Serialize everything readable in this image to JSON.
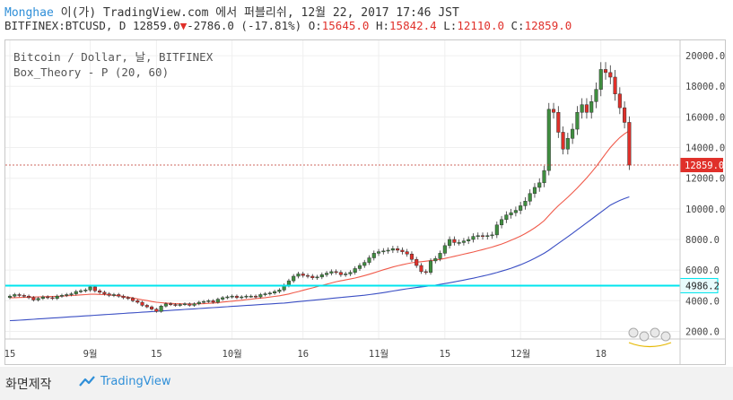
{
  "header": {
    "line1": {
      "brand": "Monghae",
      "text": " 이(가) TradingView.com 에서 퍼블리쉬, 12월 22, 2017 17:46 JST"
    },
    "line2": {
      "symbol": "BITFINEX:BTCUSD, D",
      "last": "12859.0",
      "arrow": "▼",
      "change": "-2786.0 (-17.81%)",
      "o_label": "O:",
      "o": "15645.0",
      "h_label": "H:",
      "h": "15842.4",
      "l_label": "L:",
      "l": "12110.0",
      "c_label": "C:",
      "c": "12859.0"
    }
  },
  "footer": {
    "left": "화면제작",
    "logo_text": "TradingView"
  },
  "colors": {
    "up": "#3f8e3f",
    "down": "#e0302a",
    "ma20": "#f05a4a",
    "ma60": "#3b4fc4",
    "hline": "#00e5ee",
    "price_line": "#c0392b"
  },
  "chart_data": {
    "type": "candlestick",
    "title": "Bitcoin / Dollar, 날, BITFINEX",
    "indicator": "Box_Theory - P (20, 60)",
    "ylim": [
      1500,
      21000
    ],
    "yticks": [
      2000,
      4000,
      6000,
      8000,
      10000,
      12000,
      14000,
      16000,
      18000,
      20000
    ],
    "ytick_labels": [
      "2000.0",
      "4000.0",
      "6000.0",
      "8000.0",
      "10000.0",
      "12000.0",
      "14000.0",
      "16000.0",
      "18000.0",
      "20000.0"
    ],
    "xticks": [
      {
        "label": "15",
        "day": 0
      },
      {
        "label": "9월",
        "day": 17
      },
      {
        "label": "15",
        "day": 31
      },
      {
        "label": "10월",
        "day": 47
      },
      {
        "label": "16",
        "day": 62
      },
      {
        "label": "11월",
        "day": 78
      },
      {
        "label": "15",
        "day": 92
      },
      {
        "label": "12월",
        "day": 108
      },
      {
        "label": "18",
        "day": 125
      }
    ],
    "x_range": [
      0,
      145
    ],
    "price_label": "12859.0",
    "price_value": 12859,
    "hline_label": "4986.2",
    "hline_value": 4986.2,
    "closes": [
      4300,
      4400,
      4350,
      4300,
      4200,
      4050,
      4150,
      4250,
      4200,
      4150,
      4300,
      4350,
      4400,
      4450,
      4600,
      4650,
      4700,
      4900,
      4650,
      4550,
      4450,
      4350,
      4400,
      4300,
      4200,
      4150,
      4000,
      3900,
      3700,
      3600,
      3450,
      3300,
      3650,
      3800,
      3750,
      3700,
      3750,
      3800,
      3700,
      3800,
      3900,
      3950,
      4000,
      3900,
      4100,
      4200,
      4250,
      4300,
      4200,
      4250,
      4300,
      4300,
      4250,
      4400,
      4450,
      4500,
      4600,
      4700,
      5000,
      5300,
      5600,
      5750,
      5650,
      5600,
      5500,
      5550,
      5700,
      5800,
      5900,
      5850,
      5700,
      5750,
      5850,
      6100,
      6300,
      6500,
      6800,
      7100,
      7200,
      7250,
      7300,
      7400,
      7300,
      7200,
      7050,
      6700,
      6300,
      5900,
      5850,
      6600,
      6750,
      7100,
      7600,
      8000,
      7800,
      7800,
      7900,
      8000,
      8200,
      8250,
      8200,
      8250,
      8300,
      8950,
      9300,
      9600,
      9750,
      9900,
      10200,
      10500,
      11000,
      11400,
      11700,
      12500,
      16500,
      16300,
      15000,
      13900,
      14600,
      15200,
      16300,
      16800,
      16300,
      17000,
      17800,
      19100,
      18900,
      18600,
      17500,
      16600,
      15645,
      12859
    ],
    "ma20": [
      4200,
      4200,
      4210,
      4220,
      4230,
      4240,
      4250,
      4260,
      4270,
      4280,
      4290,
      4300,
      4320,
      4340,
      4360,
      4380,
      4400,
      4420,
      4420,
      4410,
      4400,
      4380,
      4350,
      4320,
      4280,
      4230,
      4180,
      4120,
      4060,
      4010,
      3950,
      3900,
      3870,
      3850,
      3830,
      3810,
      3800,
      3790,
      3790,
      3790,
      3800,
      3810,
      3830,
      3850,
      3880,
      3910,
      3940,
      3970,
      4000,
      4030,
      4070,
      4100,
      4140,
      4170,
      4200,
      4240,
      4280,
      4320,
      4380,
      4440,
      4520,
      4600,
      4680,
      4760,
      4840,
      4920,
      5000,
      5080,
      5160,
      5240,
      5300,
      5360,
      5420,
      5480,
      5560,
      5640,
      5730,
      5820,
      5920,
      6020,
      6110,
      6200,
      6280,
      6350,
      6420,
      6480,
      6520,
      6550,
      6580,
      6620,
      6660,
      6700,
      6760,
      6830,
      6900,
      6970,
      7040,
      7110,
      7180,
      7260,
      7340,
      7420,
      7500,
      7600,
      7700,
      7820,
      7950,
      8080,
      8220,
      8380,
      8560,
      8760,
      8980,
      9230,
      9570,
      9900,
      10200,
      10480,
      10760,
      11050,
      11360,
      11690,
      12020,
      12380,
      12760,
      13180,
      13600,
      14000,
      14350,
      14650,
      14900,
      15100
    ],
    "ma60": [
      2700,
      2710,
      2730,
      2750,
      2770,
      2790,
      2810,
      2830,
      2850,
      2870,
      2890,
      2910,
      2930,
      2950,
      2970,
      2990,
      3010,
      3030,
      3050,
      3070,
      3090,
      3110,
      3130,
      3150,
      3170,
      3190,
      3210,
      3230,
      3250,
      3270,
      3290,
      3310,
      3330,
      3350,
      3370,
      3390,
      3410,
      3430,
      3450,
      3470,
      3490,
      3510,
      3530,
      3550,
      3570,
      3590,
      3610,
      3630,
      3650,
      3670,
      3690,
      3710,
      3730,
      3750,
      3770,
      3790,
      3810,
      3830,
      3850,
      3880,
      3910,
      3940,
      3970,
      4000,
      4030,
      4060,
      4090,
      4120,
      4150,
      4180,
      4210,
      4240,
      4270,
      4300,
      4330,
      4360,
      4400,
      4440,
      4480,
      4530,
      4580,
      4630,
      4680,
      4730,
      4780,
      4820,
      4860,
      4900,
      4940,
      4980,
      5020,
      5070,
      5120,
      5170,
      5230,
      5290,
      5350,
      5410,
      5470,
      5540,
      5610,
      5680,
      5760,
      5840,
      5930,
      6020,
      6120,
      6230,
      6350,
      6480,
      6620,
      6770,
      6930,
      7100,
      7300,
      7520,
      7740,
      7960,
      8180,
      8400,
      8630,
      8860,
      9090,
      9320,
      9550,
      9780,
      10010,
      10240,
      10400,
      10550,
      10670,
      10780
    ]
  }
}
